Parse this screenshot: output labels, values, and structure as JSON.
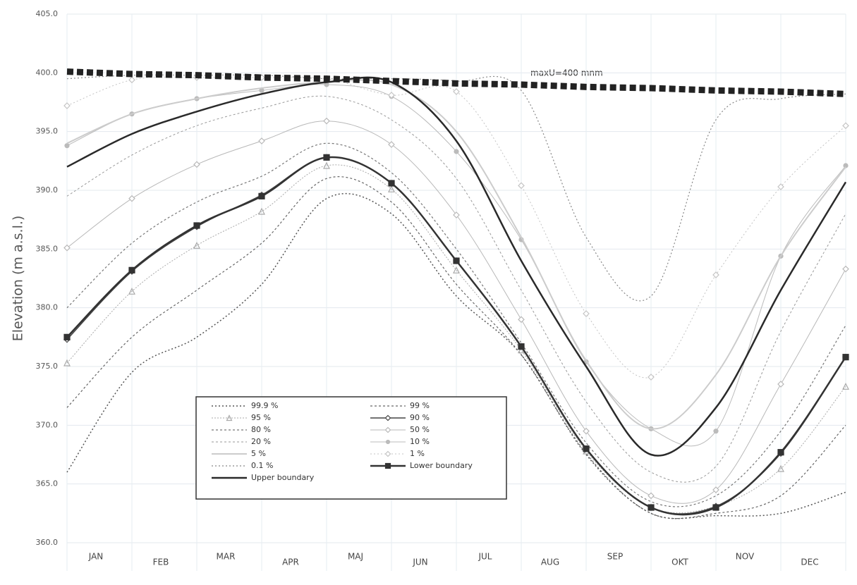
{
  "chart_data": {
    "type": "line",
    "y_label": "Elevation (m a.s.l.)",
    "categories": [
      "JAN",
      "FEB",
      "MAR",
      "APR",
      "MAJ",
      "JUN",
      "JUL",
      "AUG",
      "SEP",
      "OKT",
      "NOV",
      "DEC",
      null
    ],
    "ylim": [
      360,
      405
    ],
    "yticks": [
      {
        "value": 360,
        "label": "360.0"
      },
      {
        "value": 365,
        "label": "365.0"
      },
      {
        "value": 370,
        "label": "370.0"
      },
      {
        "value": 375,
        "label": "375.0"
      },
      {
        "value": 380,
        "label": "380.0"
      },
      {
        "value": 385,
        "label": "385.0"
      },
      {
        "value": 390,
        "label": "390.0"
      },
      {
        "value": 395,
        "label": "395.0"
      },
      {
        "value": 400,
        "label": "400.0"
      },
      {
        "value": 405,
        "label": "405.0"
      }
    ],
    "grid": true,
    "annotation": "maxU=400 mnm",
    "series": [
      {
        "name": "99.9 %",
        "color": "#555555",
        "dash": "2,3",
        "width": 1.5,
        "marker": "none",
        "values": [
          366,
          374.5,
          377.5,
          382,
          389.3,
          388,
          381,
          376,
          367.5,
          362.5,
          362.3,
          362.5,
          364.3
        ]
      },
      {
        "name": "99 %",
        "color": "#666666",
        "dash": "3,3",
        "width": 1.2,
        "marker": "none",
        "values": [
          371.5,
          377.5,
          381.5,
          385.5,
          391,
          389,
          382,
          376,
          367.6,
          362.5,
          362.5,
          364,
          370
        ]
      },
      {
        "name": "95 %",
        "color": "#aaaaaa",
        "dash": "2,2",
        "width": 1,
        "marker": "triangle",
        "values": [
          375.3,
          381.4,
          385.3,
          388.2,
          392.1,
          390.1,
          383.2,
          376.4,
          367.8,
          363,
          363.1,
          366.3,
          373.3
        ]
      },
      {
        "name": "90 %",
        "color": "#444444",
        "dash": "none",
        "width": 1.5,
        "marker": "diamond",
        "values": [
          377.3,
          383.1,
          386.9,
          389.6,
          392.8,
          390.6,
          384,
          376.7,
          368,
          363,
          363.1,
          367.6,
          375.8
        ]
      },
      {
        "name": "80 %",
        "color": "#777777",
        "dash": "3,3",
        "width": 1.2,
        "marker": "none",
        "values": [
          380,
          385.5,
          389,
          391.2,
          394,
          391.5,
          385,
          377,
          368.5,
          363.5,
          364,
          369.5,
          378.5
        ]
      },
      {
        "name": "50 %",
        "color": "#b8b8b8",
        "dash": "none",
        "width": 1,
        "marker": "diamond",
        "values": [
          385.1,
          389.3,
          392.2,
          394.2,
          395.9,
          393.9,
          387.9,
          379,
          369.5,
          364,
          364.5,
          373.5,
          383.3
        ]
      },
      {
        "name": "20 %",
        "color": "#999999",
        "dash": "3,3",
        "width": 1,
        "marker": "none",
        "values": [
          389.5,
          393,
          395.5,
          397,
          398,
          396,
          391,
          381.5,
          372,
          366,
          366.5,
          378,
          388
        ]
      },
      {
        "name": "10 %",
        "color": "#bbbbbb",
        "dash": "none",
        "width": 1,
        "marker": "circle",
        "values": [
          393.8,
          396.5,
          397.8,
          398.5,
          399,
          398,
          393.3,
          385.8,
          375.4,
          369.7,
          369.5,
          384.4,
          392.1
        ]
      },
      {
        "name": "5 %",
        "color": "#cccccc",
        "dash": "none",
        "width": 2,
        "marker": "none",
        "values": [
          394,
          396.5,
          397.8,
          398.7,
          399.2,
          399,
          395,
          386,
          375.5,
          369.7,
          374.3,
          384.4,
          392
        ]
      },
      {
        "name": "1 %",
        "color": "#c4c4c4",
        "dash": "2,3",
        "width": 1,
        "marker": "diamond",
        "values": [
          397.2,
          399.4,
          399.6,
          399.6,
          399.5,
          398.1,
          398.4,
          390.4,
          379.5,
          374.1,
          382.8,
          390.3,
          395.5
        ]
      },
      {
        "name": "0.1 %",
        "color": "#888888",
        "dash": "2,3",
        "width": 1.2,
        "marker": "none",
        "values": [
          399.5,
          399.8,
          399.8,
          399.8,
          399.5,
          399.5,
          399.3,
          398.5,
          386,
          381,
          396,
          397.8,
          398.2
        ]
      },
      {
        "name": "Lower boundary",
        "color": "#333333",
        "dash": "none",
        "width": 2.5,
        "marker": "square",
        "values": [
          377.5,
          383.2,
          387,
          389.5,
          392.8,
          390.6,
          384,
          376.7,
          368,
          363,
          363,
          367.7,
          375.8
        ]
      },
      {
        "name": "Upper boundary",
        "color": "#2a2a2a",
        "dash": "none",
        "width": 2.5,
        "marker": "none",
        "values": [
          392,
          394.8,
          396.7,
          398.2,
          399.2,
          399.2,
          394.2,
          384,
          375,
          367.5,
          371.5,
          381.5,
          390.7
        ]
      },
      {
        "color": "#222222",
        "dash": "9,5",
        "width": 9,
        "marker": "none",
        "straight": true,
        "values": [
          400.1,
          399.9,
          399.8,
          399.6,
          399.5,
          399.3,
          399.1,
          399,
          398.8,
          398.7,
          398.5,
          398.4,
          398.2
        ]
      }
    ]
  }
}
